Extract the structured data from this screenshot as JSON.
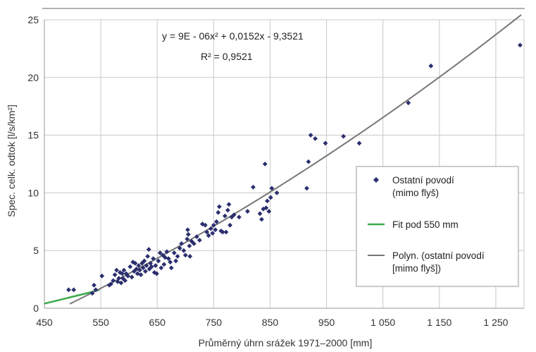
{
  "chart_data": {
    "type": "scatter",
    "xlabel": "Průměrný úhrn srážek 1971–2000 [mm]",
    "ylabel": "Spec. celk. odtok [l/s/km²]",
    "xlim": [
      450,
      1300
    ],
    "ylim": [
      0,
      25
    ],
    "x_ticks": [
      450,
      550,
      650,
      750,
      850,
      950,
      1050,
      1150,
      1250
    ],
    "x_tick_labels": [
      "450",
      "550",
      "650",
      "750",
      "850",
      "950",
      "1 050",
      "1 150",
      "1 250"
    ],
    "y_ticks": [
      0,
      5,
      10,
      15,
      20,
      25
    ],
    "y_tick_labels": [
      "0",
      "5",
      "10",
      "15",
      "20",
      "25"
    ],
    "grid": true,
    "annotations": [
      "y = 9E - 06x² + 0,0152x - 9,3521",
      "R² = 0,9521"
    ],
    "legend": {
      "placement": "right",
      "entries": [
        {
          "label_line1": "Ostatní povodí",
          "label_line2": "(mimo flyš)"
        },
        {
          "label_line1": "Fit pod 550 mm",
          "label_line2": ""
        },
        {
          "label_line1": "Polyn. (ostatní povodí",
          "label_line2": "[mimo flyš])"
        }
      ]
    },
    "colors": {
      "points": "#2b2f6e",
      "fit_under_550": "#3aaa4a",
      "polynomial": "#777777",
      "grid": "#c8c8c8",
      "frame": "#999999"
    },
    "series": [
      {
        "name": "Ostatní povodí (mimo flyš)",
        "kind": "points",
        "points": [
          [
            493,
            1.6
          ],
          [
            502,
            1.6
          ],
          [
            535,
            1.3
          ],
          [
            538,
            2.0
          ],
          [
            541,
            1.6
          ],
          [
            552,
            2.8
          ],
          [
            565,
            2.0
          ],
          [
            568,
            2.1
          ],
          [
            572,
            2.4
          ],
          [
            575,
            2.9
          ],
          [
            578,
            3.3
          ],
          [
            580,
            2.3
          ],
          [
            582,
            2.6
          ],
          [
            584,
            3.1
          ],
          [
            586,
            2.2
          ],
          [
            588,
            3.0
          ],
          [
            589,
            2.6
          ],
          [
            591,
            3.3
          ],
          [
            593,
            2.4
          ],
          [
            595,
            3.0
          ],
          [
            598,
            2.8
          ],
          [
            602,
            3.6
          ],
          [
            605,
            2.7
          ],
          [
            607,
            4.0
          ],
          [
            609,
            3.2
          ],
          [
            611,
            3.9
          ],
          [
            613,
            3.4
          ],
          [
            615,
            3.0
          ],
          [
            617,
            3.7
          ],
          [
            619,
            3.3
          ],
          [
            621,
            2.9
          ],
          [
            623,
            3.9
          ],
          [
            625,
            3.5
          ],
          [
            627,
            4.1
          ],
          [
            629,
            3.2
          ],
          [
            631,
            3.7
          ],
          [
            633,
            4.5
          ],
          [
            635,
            5.1
          ],
          [
            636,
            3.4
          ],
          [
            638,
            3.9
          ],
          [
            640,
            3.6
          ],
          [
            643,
            4.3
          ],
          [
            645,
            3.1
          ],
          [
            647,
            3.7
          ],
          [
            649,
            3.0
          ],
          [
            652,
            4.1
          ],
          [
            655,
            4.8
          ],
          [
            657,
            3.5
          ],
          [
            660,
            4.6
          ],
          [
            662,
            3.8
          ],
          [
            664,
            4.4
          ],
          [
            667,
            4.9
          ],
          [
            670,
            4.3
          ],
          [
            673,
            4.0
          ],
          [
            675,
            3.5
          ],
          [
            680,
            4.8
          ],
          [
            683,
            4.1
          ],
          [
            686,
            4.5
          ],
          [
            690,
            5.2
          ],
          [
            693,
            5.6
          ],
          [
            697,
            5.0
          ],
          [
            700,
            4.6
          ],
          [
            703,
            6.0
          ],
          [
            704,
            6.8
          ],
          [
            705,
            6.4
          ],
          [
            707,
            5.4
          ],
          [
            708,
            4.5
          ],
          [
            711,
            5.8
          ],
          [
            715,
            5.6
          ],
          [
            720,
            6.2
          ],
          [
            725,
            5.9
          ],
          [
            730,
            7.3
          ],
          [
            735,
            7.2
          ],
          [
            738,
            6.6
          ],
          [
            741,
            6.3
          ],
          [
            745,
            6.9
          ],
          [
            748,
            6.5
          ],
          [
            750,
            7.2
          ],
          [
            753,
            6.8
          ],
          [
            755,
            7.5
          ],
          [
            758,
            8.3
          ],
          [
            760,
            8.8
          ],
          [
            763,
            6.7
          ],
          [
            766,
            6.6
          ],
          [
            770,
            8.0
          ],
          [
            772,
            6.6
          ],
          [
            775,
            8.5
          ],
          [
            777,
            9.0
          ],
          [
            779,
            7.2
          ],
          [
            782,
            7.9
          ],
          [
            786,
            8.1
          ],
          [
            795,
            7.9
          ],
          [
            810,
            8.4
          ],
          [
            820,
            10.5
          ],
          [
            832,
            8.2
          ],
          [
            835,
            7.7
          ],
          [
            838,
            8.6
          ],
          [
            841,
            12.5
          ],
          [
            843,
            8.7
          ],
          [
            845,
            9.3
          ],
          [
            848,
            8.4
          ],
          [
            851,
            9.6
          ],
          [
            853,
            10.4
          ],
          [
            862,
            10.0
          ],
          [
            915,
            10.4
          ],
          [
            918,
            12.7
          ],
          [
            922,
            15.0
          ],
          [
            930,
            14.7
          ],
          [
            948,
            14.3
          ],
          [
            980,
            14.9
          ],
          [
            1008,
            14.3
          ],
          [
            1095,
            17.8
          ],
          [
            1135,
            21.0
          ],
          [
            1293,
            22.8
          ]
        ]
      },
      {
        "name": "Fit pod 550 mm",
        "kind": "line",
        "points": [
          [
            450,
            0.4
          ],
          [
            475,
            0.7
          ],
          [
            500,
            1.0
          ],
          [
            525,
            1.3
          ],
          [
            548,
            1.6
          ]
        ]
      },
      {
        "name": "Polyn. (ostatní povodí [mimo flyš])",
        "kind": "polynomial",
        "coefficients": [
          9e-06,
          0.0152,
          -9.3521
        ],
        "x_range": [
          495,
          1295
        ]
      }
    ]
  }
}
